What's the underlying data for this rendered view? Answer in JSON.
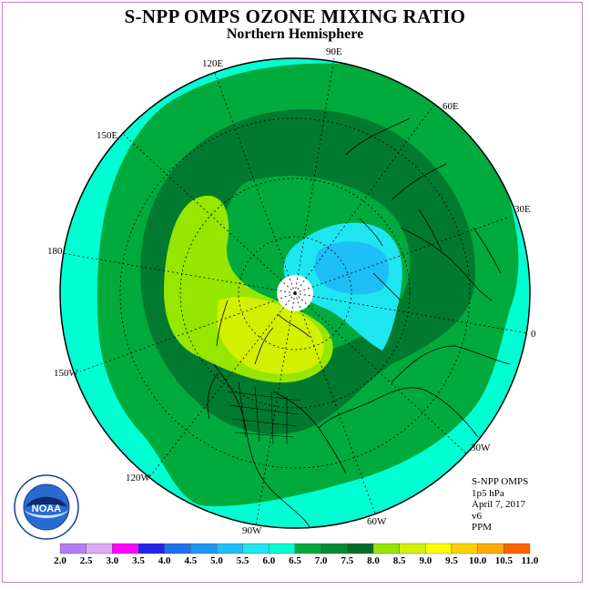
{
  "title": "S-NPP OMPS OZONE MIXING RATIO",
  "subtitle": "Northern Hemisphere",
  "longitude_labels": [
    "90E",
    "60E",
    "30E",
    "0",
    "30W",
    "60W",
    "90W",
    "120W",
    "150W",
    "180",
    "150E",
    "120E"
  ],
  "info": {
    "instrument": "S-NPP OMPS",
    "level": "1p5 hPa",
    "date": "April 7, 2017",
    "version": "v6",
    "units": "PPM"
  },
  "legend": {
    "ticks": [
      "2.0",
      "2.5",
      "3.0",
      "3.5",
      "4.0",
      "4.5",
      "5.0",
      "5.5",
      "6.0",
      "6.5",
      "7.0",
      "7.5",
      "8.0",
      "8.5",
      "9.0",
      "9.5",
      "10.0",
      "10.5",
      "11.0"
    ],
    "colors": [
      "#b57cf0",
      "#dcaaf4",
      "#ff00ff",
      "#2323e6",
      "#1e6ef0",
      "#1e96f5",
      "#1ebef7",
      "#1ee6f0",
      "#00ffd2",
      "#00aa3c",
      "#008c32",
      "#006e28",
      "#96e600",
      "#d2f000",
      "#ffff00",
      "#ffd200",
      "#ffaa00",
      "#ff6400",
      "#ff0000",
      "#8c4628"
    ]
  },
  "logo": {
    "text": "NOAA",
    "ring_text": "NATIONAL OCEANIC AND ATMOSPHERIC ADMINISTRATION · U.S. DEPARTMENT OF COMMERCE"
  }
}
